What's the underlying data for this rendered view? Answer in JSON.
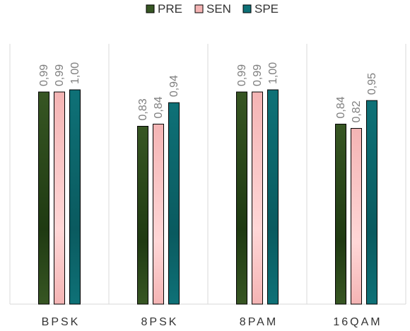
{
  "chart_data": {
    "type": "bar",
    "categories": [
      "BPSK",
      "8PSK",
      "8PAM",
      "16QAM"
    ],
    "series": [
      {
        "name": "PRE",
        "values": [
          0.99,
          0.83,
          0.99,
          0.84
        ],
        "labels": [
          "0,99",
          "0,83",
          "0,99",
          "0,84"
        ]
      },
      {
        "name": "SEN",
        "values": [
          0.99,
          0.84,
          0.99,
          0.82
        ],
        "labels": [
          "0,99",
          "0,84",
          "0,99",
          "0,82"
        ]
      },
      {
        "name": "SPE",
        "values": [
          1.0,
          0.94,
          1.0,
          0.95
        ],
        "labels": [
          "1,00",
          "0,94",
          "1,00",
          "0,95"
        ]
      }
    ],
    "ylim": [
      0,
      1.0
    ],
    "grid": false,
    "legend_position": "top-center",
    "colors": {
      "PRE": "#375623",
      "SEN": "#f4b4b4",
      "SPE": "#0e7177"
    },
    "gradient_colors": {
      "PRE": "#1f3a12",
      "SEN": "#ffd6d6",
      "SPE": "#0a5a5f"
    },
    "separator_color": "#d9d9d9",
    "bar_stroke": "#000000"
  }
}
